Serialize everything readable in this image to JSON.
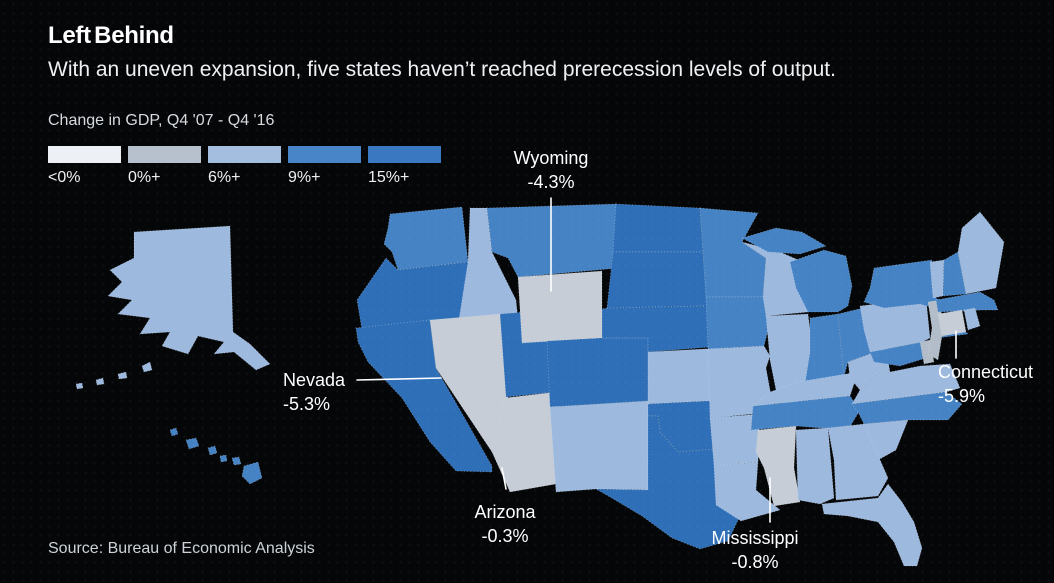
{
  "header": {
    "title": "Left Behind",
    "subtitle": "With an uneven expansion, five states haven’t reached prerecession levels of output."
  },
  "legend": {
    "label": "Change in GDP, Q4 '07 - Q4 '16",
    "items": [
      {
        "label": "<0%",
        "color": "#edf0f4"
      },
      {
        "label": "0%+",
        "color": "#b7c1cd"
      },
      {
        "label": "6%+",
        "color": "#a3bedf"
      },
      {
        "label": "9%+",
        "color": "#4785c8"
      },
      {
        "label": "15%+",
        "color": "#3a79c2"
      }
    ]
  },
  "source": "Source: Bureau of Economic Analysis",
  "annotations": [
    {
      "state": "Wyoming",
      "value": "-4.3%"
    },
    {
      "state": "Nevada",
      "value": "-5.3%"
    },
    {
      "state": "Arizona",
      "value": "-0.3%"
    },
    {
      "state": "Mississippi",
      "value": "-0.8%"
    },
    {
      "state": "Connecticut",
      "value": "-5.9%"
    }
  ],
  "chart_data": {
    "type": "choropleth-map",
    "title": "Left Behind",
    "metric": "Change in GDP, Q4 '07 - Q4 '16",
    "bins": [
      "<0%",
      "0%+",
      "6%+",
      "9%+",
      "15%+"
    ],
    "bin_colors": {
      "<0%": "#c6cdd6",
      "0%+": "#b2bdc9",
      "6%+": "#9db9de",
      "9%+": "#4583c5",
      "15%+": "#2f6fb7"
    },
    "callouts": [
      {
        "state": "Wyoming",
        "value_pct": -4.3
      },
      {
        "state": "Nevada",
        "value_pct": -5.3
      },
      {
        "state": "Arizona",
        "value_pct": -0.3
      },
      {
        "state": "Mississippi",
        "value_pct": -0.8
      },
      {
        "state": "Connecticut",
        "value_pct": -5.9
      }
    ],
    "states": [
      {
        "id": "AK",
        "name": "Alaska",
        "bin": "6%+"
      },
      {
        "id": "HI",
        "name": "Hawaii",
        "bin": "9%+"
      },
      {
        "id": "WA",
        "name": "Washington",
        "bin": "9%+"
      },
      {
        "id": "OR",
        "name": "Oregon",
        "bin": "15%+"
      },
      {
        "id": "CA",
        "name": "California",
        "bin": "15%+"
      },
      {
        "id": "ID",
        "name": "Idaho",
        "bin": "6%+"
      },
      {
        "id": "NV",
        "name": "Nevada",
        "bin": "<0%"
      },
      {
        "id": "UT",
        "name": "Utah",
        "bin": "15%+"
      },
      {
        "id": "AZ",
        "name": "Arizona",
        "bin": "<0%"
      },
      {
        "id": "MT",
        "name": "Montana",
        "bin": "9%+"
      },
      {
        "id": "WY",
        "name": "Wyoming",
        "bin": "<0%"
      },
      {
        "id": "CO",
        "name": "Colorado",
        "bin": "15%+"
      },
      {
        "id": "NM",
        "name": "New Mexico",
        "bin": "6%+"
      },
      {
        "id": "ND",
        "name": "North Dakota",
        "bin": "15%+"
      },
      {
        "id": "SD",
        "name": "South Dakota",
        "bin": "15%+"
      },
      {
        "id": "NE",
        "name": "Nebraska",
        "bin": "15%+"
      },
      {
        "id": "KS",
        "name": "Kansas",
        "bin": "6%+"
      },
      {
        "id": "OK",
        "name": "Oklahoma",
        "bin": "15%+"
      },
      {
        "id": "TX",
        "name": "Texas",
        "bin": "15%+"
      },
      {
        "id": "MN",
        "name": "Minnesota",
        "bin": "9%+"
      },
      {
        "id": "IA",
        "name": "Iowa",
        "bin": "9%+"
      },
      {
        "id": "MO",
        "name": "Missouri",
        "bin": "6%+"
      },
      {
        "id": "AR",
        "name": "Arkansas",
        "bin": "6%+"
      },
      {
        "id": "LA",
        "name": "Louisiana",
        "bin": "6%+"
      },
      {
        "id": "WI",
        "name": "Wisconsin",
        "bin": "6%+"
      },
      {
        "id": "IL",
        "name": "Illinois",
        "bin": "6%+"
      },
      {
        "id": "MS",
        "name": "Mississippi",
        "bin": "<0%"
      },
      {
        "id": "MI",
        "name": "Michigan",
        "bin": "9%+"
      },
      {
        "id": "IN",
        "name": "Indiana",
        "bin": "9%+"
      },
      {
        "id": "OH",
        "name": "Ohio",
        "bin": "9%+"
      },
      {
        "id": "KY",
        "name": "Kentucky",
        "bin": "6%+"
      },
      {
        "id": "TN",
        "name": "Tennessee",
        "bin": "9%+"
      },
      {
        "id": "WV",
        "name": "West Virginia",
        "bin": "6%+"
      },
      {
        "id": "MD",
        "name": "Maryland",
        "bin": "9%+"
      },
      {
        "id": "DE",
        "name": "Delaware",
        "bin": "0%+"
      },
      {
        "id": "VA",
        "name": "Virginia",
        "bin": "6%+"
      },
      {
        "id": "NC",
        "name": "North Carolina",
        "bin": "9%+"
      },
      {
        "id": "SC",
        "name": "South Carolina",
        "bin": "6%+"
      },
      {
        "id": "GA",
        "name": "Georgia",
        "bin": "6%+"
      },
      {
        "id": "AL",
        "name": "Alabama",
        "bin": "6%+"
      },
      {
        "id": "FL",
        "name": "Florida",
        "bin": "6%+"
      },
      {
        "id": "PA",
        "name": "Pennsylvania",
        "bin": "6%+"
      },
      {
        "id": "NY",
        "name": "New York",
        "bin": "9%+"
      },
      {
        "id": "NJ",
        "name": "New Jersey",
        "bin": "0%+"
      },
      {
        "id": "VT",
        "name": "Vermont",
        "bin": "6%+"
      },
      {
        "id": "NH",
        "name": "New Hampshire",
        "bin": "9%+"
      },
      {
        "id": "ME",
        "name": "Maine",
        "bin": "6%+"
      },
      {
        "id": "MA",
        "name": "Massachusetts",
        "bin": "9%+"
      },
      {
        "id": "CT",
        "name": "Connecticut",
        "bin": "<0%"
      },
      {
        "id": "RI",
        "name": "Rhode Island",
        "bin": "6%+"
      }
    ]
  }
}
